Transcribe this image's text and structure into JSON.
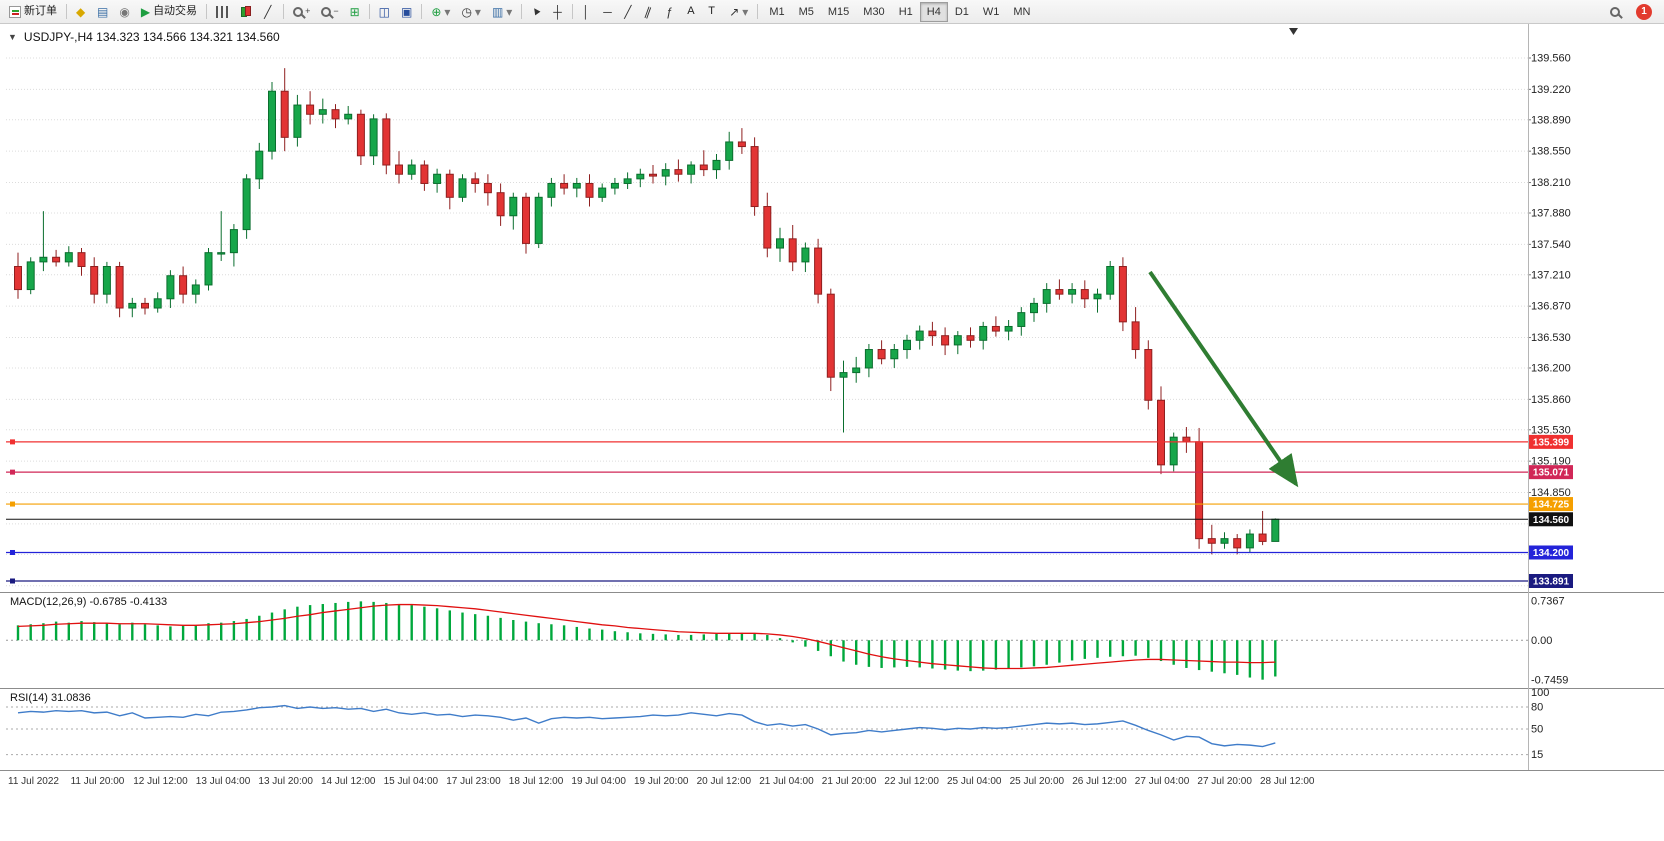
{
  "toolbar": {
    "new_order_label": "新订单",
    "auto_trading_label": "自动交易",
    "text_tool_label": "A",
    "label_tool_label": "T",
    "timeframes": [
      "M1",
      "M5",
      "M15",
      "M30",
      "H1",
      "H4",
      "D1",
      "W1",
      "MN"
    ],
    "active_timeframe": "H4",
    "notification_count": "1"
  },
  "icons": {
    "collapse": "▼",
    "metaeditor": "◆",
    "market_watch": "▤",
    "navigator": "◉",
    "play": "▶",
    "chart_line": "╱",
    "zoom_in": "+",
    "zoom_out": "−",
    "grid": "⊞",
    "tile": "◫",
    "cascade": "▣",
    "indicators": "⊕",
    "periods": "◷",
    "templates": "▥",
    "crosshair": "┼",
    "vline": "│",
    "hline": "─",
    "trendline": "╱",
    "channel": "∥",
    "fibonacci": "ƒ",
    "arrows": "↗",
    "dropdown": "▾",
    "shift_marker": "▼"
  },
  "chart": {
    "title": "USDJPY-,H4 134.323 134.566 134.321 134.560",
    "price_axis_labels": [
      "139.560",
      "139.220",
      "138.890",
      "138.550",
      "138.210",
      "137.880",
      "137.540",
      "137.210",
      "136.870",
      "136.530",
      "136.200",
      "135.860",
      "135.530",
      "135.190",
      "134.850"
    ],
    "price_levels": [
      {
        "label": "135.399",
        "value": 135.399,
        "color": "#f03030"
      },
      {
        "label": "135.071",
        "value": 135.071,
        "color": "#d12757"
      },
      {
        "label": "134.725",
        "value": 134.725,
        "color": "#f59f00"
      },
      {
        "label": "134.200",
        "value": 134.2,
        "color": "#2323d9"
      },
      {
        "label": "133.891",
        "value": 133.891,
        "color": "#1a1a80"
      }
    ],
    "current_price": {
      "label": "134.560",
      "value": 134.56,
      "color": "#111111"
    },
    "annotation_arrow": {
      "color": "#2f7d32"
    }
  },
  "panels": {
    "macd": {
      "label": "MACD(12,26,9) -0.6785 -0.4133",
      "axis_labels": [
        "0.7367",
        "0.00",
        "-0.7459"
      ]
    },
    "rsi": {
      "label": "RSI(14) 31.0836",
      "axis_labels": [
        "100",
        "80",
        "50",
        "15"
      ]
    }
  },
  "time_axis": {
    "labels": [
      "11 Jul 2022",
      "11 Jul 20:00",
      "12 Jul 12:00",
      "13 Jul 04:00",
      "13 Jul 20:00",
      "14 Jul 12:00",
      "15 Jul 04:00",
      "17 Jul 23:00",
      "18 Jul 12:00",
      "19 Jul 04:00",
      "19 Jul 20:00",
      "20 Jul 12:00",
      "21 Jul 04:00",
      "21 Jul 20:00",
      "22 Jul 12:00",
      "25 Jul 04:00",
      "25 Jul 20:00",
      "26 Jul 12:00",
      "27 Jul 04:00",
      "27 Jul 20:00",
      "28 Jul 12:00"
    ]
  },
  "chart_data": [
    {
      "type": "candlestick",
      "title": "USDJPY- H4",
      "ylim": [
        133.79,
        139.89
      ],
      "up_color": "#17a64a",
      "down_color": "#e23434",
      "ohlc": [
        [
          137.3,
          137.45,
          136.95,
          137.05
        ],
        [
          137.05,
          137.4,
          137.0,
          137.35
        ],
        [
          137.35,
          137.9,
          137.25,
          137.4
        ],
        [
          137.4,
          137.48,
          137.3,
          137.35
        ],
        [
          137.35,
          137.52,
          137.3,
          137.45
        ],
        [
          137.45,
          137.5,
          137.2,
          137.3
        ],
        [
          137.3,
          137.4,
          136.9,
          137.0
        ],
        [
          137.0,
          137.35,
          136.9,
          137.3
        ],
        [
          137.3,
          137.35,
          136.75,
          136.85
        ],
        [
          136.85,
          136.96,
          136.75,
          136.9
        ],
        [
          136.9,
          136.96,
          136.78,
          136.85
        ],
        [
          136.85,
          137.02,
          136.8,
          136.95
        ],
        [
          136.95,
          137.26,
          136.85,
          137.2
        ],
        [
          137.2,
          137.3,
          136.9,
          137.0
        ],
        [
          137.0,
          137.16,
          136.9,
          137.1
        ],
        [
          137.1,
          137.5,
          137.04,
          137.45
        ],
        [
          137.45,
          137.9,
          137.36,
          137.45
        ],
        [
          137.45,
          137.76,
          137.3,
          137.7
        ],
        [
          137.7,
          138.3,
          137.6,
          138.25
        ],
        [
          138.25,
          138.64,
          138.14,
          138.55
        ],
        [
          138.55,
          139.3,
          138.46,
          139.2
        ],
        [
          139.2,
          139.45,
          138.55,
          138.7
        ],
        [
          138.7,
          139.16,
          138.6,
          139.05
        ],
        [
          139.05,
          139.2,
          138.84,
          138.95
        ],
        [
          138.95,
          139.12,
          138.85,
          139.0
        ],
        [
          139.0,
          139.06,
          138.8,
          138.9
        ],
        [
          138.9,
          139.04,
          138.84,
          138.95
        ],
        [
          138.95,
          139.0,
          138.4,
          138.5
        ],
        [
          138.5,
          138.95,
          138.4,
          138.9
        ],
        [
          138.9,
          138.96,
          138.3,
          138.4
        ],
        [
          138.4,
          138.55,
          138.2,
          138.3
        ],
        [
          138.3,
          138.46,
          138.24,
          138.4
        ],
        [
          138.4,
          138.45,
          138.12,
          138.2
        ],
        [
          138.2,
          138.36,
          138.1,
          138.3
        ],
        [
          138.3,
          138.35,
          137.92,
          138.05
        ],
        [
          138.05,
          138.3,
          138.0,
          138.25
        ],
        [
          138.25,
          138.32,
          138.1,
          138.2
        ],
        [
          138.2,
          138.3,
          137.96,
          138.1
        ],
        [
          138.1,
          138.2,
          137.74,
          137.85
        ],
        [
          137.85,
          138.1,
          137.7,
          138.05
        ],
        [
          138.05,
          138.1,
          137.44,
          137.55
        ],
        [
          137.55,
          138.1,
          137.5,
          138.05
        ],
        [
          138.05,
          138.26,
          137.95,
          138.2
        ],
        [
          138.2,
          138.3,
          138.08,
          138.15
        ],
        [
          138.15,
          138.26,
          138.05,
          138.2
        ],
        [
          138.2,
          138.3,
          137.95,
          138.05
        ],
        [
          138.05,
          138.2,
          138.0,
          138.15
        ],
        [
          138.15,
          138.26,
          138.08,
          138.2
        ],
        [
          138.2,
          138.32,
          138.14,
          138.25
        ],
        [
          138.25,
          138.36,
          138.16,
          138.3
        ],
        [
          138.3,
          138.4,
          138.2,
          138.28
        ],
        [
          138.28,
          138.42,
          138.18,
          138.35
        ],
        [
          138.35,
          138.46,
          138.22,
          138.3
        ],
        [
          138.3,
          138.44,
          138.2,
          138.4
        ],
        [
          138.4,
          138.56,
          138.28,
          138.35
        ],
        [
          138.35,
          138.52,
          138.25,
          138.45
        ],
        [
          138.45,
          138.76,
          138.35,
          138.65
        ],
        [
          138.65,
          138.8,
          138.52,
          138.6
        ],
        [
          138.6,
          138.7,
          137.85,
          137.95
        ],
        [
          137.95,
          138.1,
          137.4,
          137.5
        ],
        [
          137.5,
          137.72,
          137.35,
          137.6
        ],
        [
          137.6,
          137.75,
          137.25,
          137.35
        ],
        [
          137.35,
          137.56,
          137.24,
          137.5
        ],
        [
          137.5,
          137.6,
          136.9,
          137.0
        ],
        [
          137.0,
          137.06,
          135.95,
          136.1
        ],
        [
          136.1,
          136.28,
          135.5,
          136.15
        ],
        [
          136.15,
          136.32,
          136.04,
          136.2
        ],
        [
          136.2,
          136.46,
          136.1,
          136.4
        ],
        [
          136.4,
          136.5,
          136.24,
          136.3
        ],
        [
          136.3,
          136.46,
          136.2,
          136.4
        ],
        [
          136.4,
          136.56,
          136.3,
          136.5
        ],
        [
          136.5,
          136.66,
          136.4,
          136.6
        ],
        [
          136.6,
          136.7,
          136.44,
          136.55
        ],
        [
          136.55,
          136.64,
          136.34,
          136.45
        ],
        [
          136.45,
          136.6,
          136.35,
          136.55
        ],
        [
          136.55,
          136.64,
          136.42,
          136.5
        ],
        [
          136.5,
          136.7,
          136.4,
          136.65
        ],
        [
          136.65,
          136.76,
          136.54,
          136.6
        ],
        [
          136.6,
          136.72,
          136.5,
          136.65
        ],
        [
          136.65,
          136.86,
          136.55,
          136.8
        ],
        [
          136.8,
          136.96,
          136.7,
          136.9
        ],
        [
          136.9,
          137.12,
          136.8,
          137.05
        ],
        [
          137.05,
          137.16,
          136.94,
          137.0
        ],
        [
          137.0,
          137.12,
          136.9,
          137.05
        ],
        [
          137.05,
          137.15,
          136.85,
          136.95
        ],
        [
          136.95,
          137.06,
          136.8,
          137.0
        ],
        [
          137.0,
          137.36,
          136.94,
          137.3
        ],
        [
          137.3,
          137.4,
          136.6,
          136.7
        ],
        [
          136.7,
          136.86,
          136.3,
          136.4
        ],
        [
          136.4,
          136.5,
          135.75,
          135.85
        ],
        [
          135.85,
          136.0,
          135.05,
          135.15
        ],
        [
          135.15,
          135.5,
          135.08,
          135.45
        ],
        [
          135.45,
          135.56,
          135.28,
          135.4
        ],
        [
          135.4,
          135.55,
          134.24,
          134.35
        ],
        [
          134.35,
          134.5,
          134.18,
          134.3
        ],
        [
          134.3,
          134.42,
          134.24,
          134.35
        ],
        [
          134.35,
          134.4,
          134.18,
          134.25
        ],
        [
          134.25,
          134.45,
          134.2,
          134.4
        ],
        [
          134.4,
          134.65,
          134.28,
          134.32
        ],
        [
          134.32,
          134.57,
          134.32,
          134.56
        ]
      ]
    },
    {
      "type": "bar",
      "title": "MACD(12,26,9)",
      "ylim": [
        -0.88,
        0.87
      ],
      "histogram_color": "#00a83c",
      "signal_color": "#e01010",
      "histogram": [
        0.28,
        0.3,
        0.32,
        0.35,
        0.33,
        0.36,
        0.34,
        0.32,
        0.3,
        0.33,
        0.3,
        0.28,
        0.26,
        0.27,
        0.28,
        0.32,
        0.33,
        0.36,
        0.4,
        0.46,
        0.52,
        0.58,
        0.63,
        0.66,
        0.68,
        0.7,
        0.72,
        0.73,
        0.72,
        0.7,
        0.68,
        0.66,
        0.63,
        0.6,
        0.56,
        0.52,
        0.49,
        0.46,
        0.42,
        0.38,
        0.35,
        0.32,
        0.3,
        0.28,
        0.25,
        0.22,
        0.2,
        0.17,
        0.15,
        0.13,
        0.12,
        0.11,
        0.1,
        0.1,
        0.11,
        0.12,
        0.13,
        0.14,
        0.13,
        0.1,
        0.04,
        -0.04,
        -0.12,
        -0.2,
        -0.3,
        -0.4,
        -0.46,
        -0.5,
        -0.52,
        -0.51,
        -0.5,
        -0.51,
        -0.53,
        -0.55,
        -0.57,
        -0.58,
        -0.57,
        -0.55,
        -0.53,
        -0.51,
        -0.49,
        -0.46,
        -0.42,
        -0.38,
        -0.35,
        -0.33,
        -0.31,
        -0.3,
        -0.29,
        -0.33,
        -0.39,
        -0.46,
        -0.52,
        -0.56,
        -0.59,
        -0.62,
        -0.65,
        -0.7,
        -0.74,
        -0.68
      ],
      "signal": [
        0.26,
        0.27,
        0.28,
        0.3,
        0.31,
        0.32,
        0.32,
        0.32,
        0.31,
        0.31,
        0.31,
        0.3,
        0.29,
        0.28,
        0.28,
        0.29,
        0.3,
        0.31,
        0.33,
        0.35,
        0.38,
        0.41,
        0.45,
        0.48,
        0.52,
        0.55,
        0.58,
        0.61,
        0.64,
        0.66,
        0.67,
        0.67,
        0.66,
        0.65,
        0.63,
        0.61,
        0.59,
        0.56,
        0.53,
        0.5,
        0.47,
        0.44,
        0.41,
        0.38,
        0.35,
        0.32,
        0.29,
        0.27,
        0.24,
        0.22,
        0.2,
        0.18,
        0.16,
        0.15,
        0.14,
        0.13,
        0.13,
        0.13,
        0.13,
        0.12,
        0.1,
        0.07,
        0.03,
        -0.02,
        -0.08,
        -0.14,
        -0.2,
        -0.26,
        -0.31,
        -0.35,
        -0.38,
        -0.41,
        -0.44,
        -0.46,
        -0.48,
        -0.5,
        -0.52,
        -0.53,
        -0.53,
        -0.53,
        -0.52,
        -0.51,
        -0.49,
        -0.47,
        -0.45,
        -0.43,
        -0.41,
        -0.39,
        -0.37,
        -0.36,
        -0.36,
        -0.37,
        -0.38,
        -0.39,
        -0.4,
        -0.41,
        -0.41,
        -0.42,
        -0.42,
        -0.41
      ]
    },
    {
      "type": "line",
      "title": "RSI(14)",
      "ylim": [
        0,
        100
      ],
      "levels": [
        80,
        50,
        15
      ],
      "line_color": "#3f7cc9",
      "values": [
        72,
        74,
        73,
        75,
        74,
        75,
        72,
        73,
        68,
        72,
        65,
        66,
        67,
        66,
        70,
        68,
        73,
        74,
        76,
        79,
        80,
        82,
        78,
        80,
        78,
        79,
        77,
        78,
        74,
        77,
        72,
        70,
        72,
        69,
        70,
        67,
        69,
        68,
        66,
        62,
        65,
        58,
        64,
        66,
        65,
        66,
        64,
        65,
        66,
        67,
        69,
        68,
        69,
        72,
        70,
        68,
        71,
        69,
        60,
        55,
        57,
        54,
        56,
        50,
        42,
        44,
        45,
        48,
        46,
        48,
        50,
        52,
        51,
        49,
        51,
        50,
        52,
        51,
        52,
        54,
        56,
        58,
        57,
        58,
        56,
        57,
        59,
        61,
        55,
        48,
        42,
        35,
        40,
        39,
        30,
        27,
        29,
        28,
        26,
        31
      ]
    }
  ]
}
